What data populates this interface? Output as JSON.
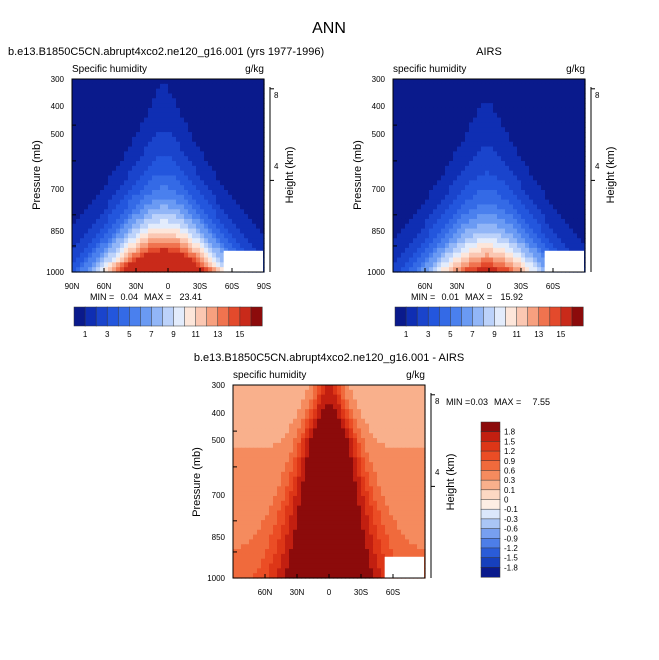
{
  "figure_title": "ANN",
  "chart_data": [
    {
      "type": "contour",
      "panel": "model",
      "title": "b.e13.B1850C5CN.abrupt4xco2.ne120_g16.001 (yrs 1977-1996)",
      "left_label": "Specific humidity",
      "right_label": "g/kg",
      "ylabel": "Pressure (mb)",
      "y2label": "Height (km)",
      "y_ticks": [
        "300",
        "400",
        "500",
        "700",
        "850",
        "1000"
      ],
      "y2_ticks": [
        "8",
        "4"
      ],
      "x_ticks": [
        "90N",
        "60N",
        "30N",
        "0",
        "30S",
        "60S",
        "90S"
      ],
      "stats": {
        "min_label": "MIN =",
        "min": "0.04",
        "max_label": "MAX =",
        "max": "23.41"
      },
      "xlim": [
        90,
        -90
      ],
      "ylim_mb": [
        300,
        1000
      ],
      "top_value": 0.5,
      "base_value": 22,
      "falloff": 2.4,
      "center_shift_deg": 4
    },
    {
      "type": "contour",
      "panel": "obs",
      "title": "AIRS",
      "left_label": "specific humidity",
      "right_label": "g/kg",
      "ylabel": "Pressure (mb)",
      "y2label": "Height (km)",
      "y_ticks": [
        "300",
        "400",
        "500",
        "700",
        "850",
        "1000"
      ],
      "y2_ticks": [
        "8",
        "4"
      ],
      "x_ticks": [
        "60N",
        "30N",
        "0",
        "30S",
        "60S"
      ],
      "stats": {
        "min_label": "MIN =",
        "min": "0.01",
        "max_label": "MAX =",
        "max": "15.92"
      },
      "xlim": [
        90,
        -90
      ],
      "ylim_mb": [
        300,
        1000
      ],
      "top_value": 0.3,
      "base_value": 15.9,
      "falloff": 2.5,
      "center_shift_deg": 2
    },
    {
      "type": "contour",
      "panel": "difference",
      "title": "b.e13.B1850C5CN.abrupt4xco2.ne120_g16.001 - AIRS",
      "left_label": "specific humidity",
      "right_label": "g/kg",
      "ylabel": "Pressure (mb)",
      "y2label": "Height (km)",
      "y_ticks": [
        "300",
        "400",
        "500",
        "700",
        "850",
        "1000"
      ],
      "y2_ticks": [
        "8",
        "4"
      ],
      "x_ticks": [
        "60N",
        "30N",
        "0",
        "30S",
        "60S"
      ],
      "stats": {
        "min_label": "MIN =",
        "min": "0.03",
        "max_label": "MAX =",
        "max": "7.55"
      },
      "xlim": [
        90,
        -90
      ],
      "ylim_mb": [
        300,
        1000
      ]
    }
  ],
  "colorbar_main": {
    "levels": [
      1,
      2,
      3,
      4,
      5,
      6,
      7,
      8,
      9,
      10,
      11,
      12,
      13,
      14,
      15
    ],
    "labels": [
      "1",
      "3",
      "5",
      "7",
      "9",
      "11",
      "13",
      "15"
    ],
    "colors": [
      "#0a1a8c",
      "#0f2eb3",
      "#1a44cc",
      "#2356dd",
      "#346ae6",
      "#4a80ee",
      "#6a9af3",
      "#92b6f7",
      "#bcd2fa",
      "#e3ecfc",
      "#fde6da",
      "#fbc7b2",
      "#f7a07f",
      "#f0734f",
      "#e34a2c",
      "#c92a1a",
      "#8c0b0b"
    ]
  },
  "colorbar_diff": {
    "labels": [
      "1.8",
      "1.5",
      "1.2",
      "0.9",
      "0.6",
      "0.3",
      "0.1",
      "0",
      "-0.1",
      "-0.3",
      "-0.6",
      "-0.9",
      "-1.2",
      "-1.5",
      "-1.8"
    ],
    "colors": [
      "#8c0b0b",
      "#c21f10",
      "#dd3617",
      "#eb4d25",
      "#f06a3c",
      "#f58b5e",
      "#f9b08c",
      "#fcd8c3",
      "#fdeee4",
      "#dbe7fb",
      "#aac6f6",
      "#779ff0",
      "#4d7ee8",
      "#2a5cd8",
      "#1640bd",
      "#0a1a8c"
    ]
  }
}
